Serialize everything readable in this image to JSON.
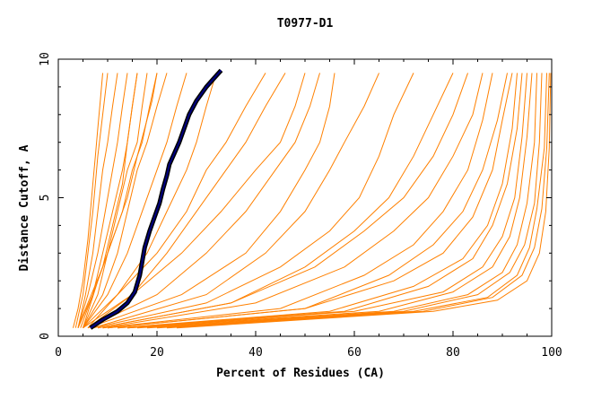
{
  "chart_data": {
    "type": "line",
    "title": "T0977-D1",
    "xlabel": "Percent of Residues (CA)",
    "ylabel": "Distance Cutoff, A",
    "xlim": [
      0,
      100
    ],
    "ylim": [
      0,
      10
    ],
    "x_ticks": [
      "0",
      "20",
      "40",
      "60",
      "80",
      "100"
    ],
    "y_ticks": [
      "0",
      "5",
      "10"
    ],
    "grid": false,
    "legend": "none",
    "colors": {
      "models": "#ff8000",
      "highlight_outer": "#000000",
      "highlight_inner": "#000080"
    },
    "series": [
      {
        "x": [
          3,
          4,
          5,
          6,
          6.5,
          7,
          7.5,
          8,
          8.5,
          9
        ],
        "y": [
          0.3,
          1,
          2,
          3.5,
          4.5,
          5.5,
          6.5,
          7.5,
          8.5,
          9.5
        ]
      },
      {
        "x": [
          3.5,
          5,
          6,
          7,
          7.5,
          8,
          9,
          10
        ],
        "y": [
          0.3,
          1.5,
          3,
          4.5,
          5.5,
          6.5,
          8,
          9.5
        ]
      },
      {
        "x": [
          4,
          5.5,
          7,
          8,
          9,
          10,
          11,
          12
        ],
        "y": [
          0.3,
          1.5,
          3,
          4.5,
          6,
          7,
          8.3,
          9.5
        ]
      },
      {
        "x": [
          4,
          6,
          8,
          9.5,
          11,
          12,
          13,
          14
        ],
        "y": [
          0.3,
          1.5,
          3,
          4.5,
          6,
          7,
          8.3,
          9.5
        ]
      },
      {
        "x": [
          4.5,
          7,
          9,
          11,
          13,
          14,
          15,
          16
        ],
        "y": [
          0.3,
          1.5,
          3,
          4.5,
          6,
          7,
          8.3,
          9.5
        ]
      },
      {
        "x": [
          5,
          8,
          10,
          12,
          14,
          16,
          17,
          18
        ],
        "y": [
          0.3,
          1.5,
          3,
          4.5,
          6,
          7,
          8.3,
          9.5
        ]
      },
      {
        "x": [
          4,
          6,
          9,
          11,
          13,
          14,
          15,
          16
        ],
        "y": [
          0.3,
          1.2,
          2.5,
          4,
          5.5,
          7,
          8.3,
          9.5
        ]
      },
      {
        "x": [
          5,
          9,
          12,
          14,
          16,
          18,
          20,
          22
        ],
        "y": [
          0.3,
          1.5,
          3,
          4.5,
          6,
          7,
          8.3,
          9.5
        ]
      },
      {
        "x": [
          5,
          10,
          14,
          17,
          20,
          22,
          24,
          26
        ],
        "y": [
          0.3,
          1.5,
          3,
          4.5,
          6,
          7,
          8.3,
          9.5
        ]
      },
      {
        "x": [
          4,
          7,
          10,
          13,
          15,
          17,
          18.5,
          20
        ],
        "y": [
          0.3,
          1.5,
          3,
          4.5,
          6,
          7,
          8.3,
          9.5
        ]
      },
      {
        "x": [
          6,
          12,
          18,
          22,
          26,
          28,
          30,
          32
        ],
        "y": [
          0.3,
          1.5,
          3,
          4.5,
          6,
          7,
          8.3,
          9.5
        ]
      },
      {
        "x": [
          5,
          8,
          11,
          14,
          16,
          17.5,
          19,
          20
        ],
        "y": [
          0.3,
          2,
          3.5,
          5,
          6.5,
          7.5,
          8.5,
          9.5
        ]
      },
      {
        "x": [
          5,
          12,
          20,
          26,
          30,
          34,
          38,
          42
        ],
        "y": [
          0.3,
          1.5,
          3,
          4.5,
          6,
          7,
          8.3,
          9.5
        ]
      },
      {
        "x": [
          6,
          15,
          22,
          28,
          34,
          38,
          42,
          46
        ],
        "y": [
          0.3,
          1.5,
          3,
          4.5,
          6,
          7,
          8.3,
          9.5
        ]
      },
      {
        "x": [
          5,
          15,
          25,
          33,
          40,
          45,
          48,
          50
        ],
        "y": [
          0.3,
          1.5,
          3,
          4.5,
          6,
          7,
          8.3,
          9.5
        ]
      },
      {
        "x": [
          6,
          20,
          30,
          38,
          44,
          48,
          51,
          53
        ],
        "y": [
          0.3,
          1.5,
          3,
          4.5,
          6,
          7,
          8.3,
          9.5
        ]
      },
      {
        "x": [
          6,
          25,
          38,
          45,
          50,
          53,
          55,
          56
        ],
        "y": [
          0.3,
          1.5,
          3,
          4.5,
          6,
          7,
          8.3,
          9.5
        ]
      },
      {
        "x": [
          7,
          30,
          42,
          50,
          55,
          58,
          62,
          65
        ],
        "y": [
          0.3,
          1.5,
          3,
          4.5,
          6,
          7,
          8.3,
          9.5
        ]
      },
      {
        "x": [
          7,
          30,
          45,
          55,
          61,
          65,
          68,
          72
        ],
        "y": [
          0.3,
          1.2,
          2.5,
          3.8,
          5,
          6.5,
          8,
          9.5
        ]
      },
      {
        "x": [
          8,
          35,
          50,
          60,
          67,
          72,
          76,
          80
        ],
        "y": [
          0.3,
          1.2,
          2.5,
          3.8,
          5,
          6.5,
          8,
          9.5
        ]
      },
      {
        "x": [
          8,
          35,
          52,
          62,
          70,
          76,
          80,
          83
        ],
        "y": [
          0.3,
          1.2,
          2.5,
          3.8,
          5,
          6.5,
          8,
          9.5
        ]
      },
      {
        "x": [
          9,
          40,
          58,
          68,
          75,
          80,
          84,
          86
        ],
        "y": [
          0.3,
          1.2,
          2.5,
          3.8,
          5,
          6.5,
          8,
          9.5
        ]
      },
      {
        "x": [
          9,
          45,
          62,
          72,
          78,
          83,
          86,
          88
        ],
        "y": [
          0.3,
          1,
          2.2,
          3.3,
          4.5,
          6,
          7.8,
          9.5
        ]
      },
      {
        "x": [
          10,
          50,
          67,
          76,
          82,
          86,
          89,
          91
        ],
        "y": [
          0.3,
          1,
          2.2,
          3.3,
          4.5,
          6,
          7.8,
          9.5
        ]
      },
      {
        "x": [
          10,
          50,
          68,
          78,
          84,
          88,
          90,
          92
        ],
        "y": [
          0.3,
          1,
          2,
          3,
          4.3,
          6,
          7.8,
          9.5
        ]
      },
      {
        "x": [
          12,
          55,
          72,
          82,
          87,
          90,
          92,
          93
        ],
        "y": [
          0.3,
          0.9,
          1.8,
          2.8,
          4,
          5.5,
          7.5,
          9.5
        ]
      },
      {
        "x": [
          12,
          58,
          75,
          84,
          88,
          91,
          93,
          94
        ],
        "y": [
          0.3,
          0.9,
          1.8,
          2.8,
          4,
          5.5,
          7.5,
          9.5
        ]
      },
      {
        "x": [
          14,
          60,
          78,
          86,
          90,
          92.5,
          94,
          95
        ],
        "y": [
          0.3,
          0.9,
          1.6,
          2.5,
          3.6,
          5,
          7.2,
          9.5
        ]
      },
      {
        "x": [
          14,
          65,
          80,
          88,
          91.5,
          93.5,
          95,
          96
        ],
        "y": [
          0.3,
          0.9,
          1.6,
          2.5,
          3.6,
          5,
          7.2,
          9.5
        ]
      },
      {
        "x": [
          16,
          68,
          83,
          90,
          93,
          95,
          96.5,
          97
        ],
        "y": [
          0.3,
          0.9,
          1.5,
          2.3,
          3.3,
          4.8,
          7,
          9.5
        ]
      },
      {
        "x": [
          18,
          70,
          85,
          91.5,
          94.5,
          96.5,
          97.5,
          98
        ],
        "y": [
          0.3,
          0.9,
          1.5,
          2.3,
          3.3,
          4.8,
          7,
          9.5
        ]
      },
      {
        "x": [
          20,
          72,
          87,
          93,
          95.5,
          97,
          98.5,
          99
        ],
        "y": [
          0.3,
          0.9,
          1.4,
          2.2,
          3.2,
          4.6,
          6.8,
          9.5
        ]
      },
      {
        "x": [
          22,
          74,
          88,
          94,
          96.5,
          98,
          99,
          99.5
        ],
        "y": [
          0.3,
          0.9,
          1.4,
          2.2,
          3.2,
          4.6,
          6.8,
          9.5
        ]
      },
      {
        "x": [
          24,
          76,
          89,
          95,
          97.5,
          98.8,
          99.5,
          99.8
        ],
        "y": [
          0.3,
          0.9,
          1.3,
          2,
          3,
          4.5,
          6.8,
          9.5
        ]
      }
    ],
    "highlight": {
      "x": [
        6.5,
        9,
        12,
        14,
        15.5,
        16.5,
        17.5,
        18.5,
        19.5,
        20.5,
        21.2,
        22,
        22.5,
        23.5,
        24.5,
        25.5,
        26.5,
        28,
        30,
        31.5,
        33
      ],
      "y": [
        0.3,
        0.6,
        0.9,
        1.2,
        1.6,
        2.2,
        3.2,
        3.8,
        4.3,
        4.8,
        5.3,
        5.8,
        6.2,
        6.6,
        7,
        7.5,
        8,
        8.5,
        9,
        9.3,
        9.6
      ]
    }
  }
}
